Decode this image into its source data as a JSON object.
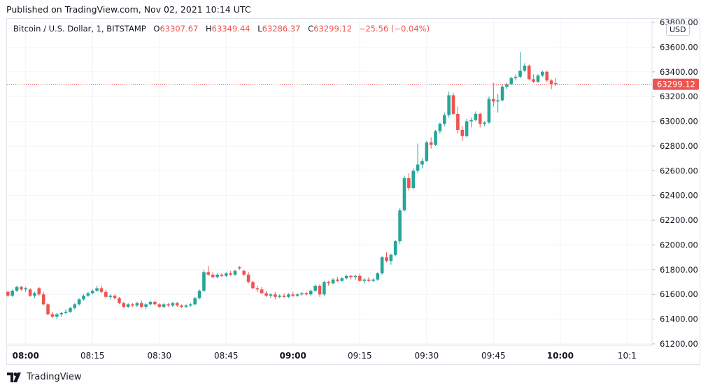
{
  "published": "Published on TradingView.com, Nov 02, 2021 10:14 UTC",
  "legend": {
    "symbol": "Bitcoin / U.S. Dollar, 1, BITSTAMP",
    "o_label": "O",
    "o_value": "63307.67",
    "h_label": "H",
    "h_value": "63349.44",
    "l_label": "L",
    "l_value": "63286.37",
    "c_label": "C",
    "c_value": "63299.12",
    "change": "−25.56 (−0.04%)"
  },
  "currency": "USD",
  "footer": {
    "brand": "TradingView"
  },
  "colors": {
    "up": "#26a69a",
    "down": "#ef5350",
    "grid": "#f0f3fa",
    "text": "#131722"
  },
  "chart_data": {
    "type": "candlestick",
    "title": "Bitcoin / U.S. Dollar, 1, BITSTAMP",
    "ylim": [
      61200,
      63800
    ],
    "y_ticks": [
      61200,
      61400,
      61600,
      61800,
      62000,
      62200,
      62400,
      62600,
      62800,
      63000,
      63200,
      63400,
      63600,
      63800
    ],
    "y_tick_labels": [
      "61200.00",
      "61400.00",
      "61600.00",
      "61800.00",
      "62000.00",
      "62200.00",
      "62400.00",
      "62600.00",
      "62800.00",
      "63000.00",
      "63200.00",
      "63400.00",
      "63600.00",
      "63800.00"
    ],
    "x_minutes_range": [
      -4.2,
      140.6
    ],
    "x_ticks": [
      {
        "minute": 0,
        "label": "08:00",
        "bold": true
      },
      {
        "minute": 15,
        "label": "08:15",
        "bold": false
      },
      {
        "minute": 30,
        "label": "08:30",
        "bold": false
      },
      {
        "minute": 45,
        "label": "08:45",
        "bold": false
      },
      {
        "minute": 60,
        "label": "09:00",
        "bold": true
      },
      {
        "minute": 75,
        "label": "09:15",
        "bold": false
      },
      {
        "minute": 90,
        "label": "09:30",
        "bold": false
      },
      {
        "minute": 105,
        "label": "09:45",
        "bold": false
      },
      {
        "minute": 120,
        "label": "10:00",
        "bold": true
      },
      {
        "minute": 135,
        "label": "10:1",
        "bold": false
      }
    ],
    "last_price": 63299.12,
    "last_price_label": "63299.12",
    "start_minute": -10,
    "ohlc": [
      [
        61710,
        61720,
        61640,
        61650
      ],
      [
        61650,
        61670,
        61630,
        61660
      ],
      [
        61660,
        61670,
        61640,
        61650
      ],
      [
        61650,
        61670,
        61640,
        61660
      ],
      [
        61660,
        61670,
        61640,
        61650
      ],
      [
        61660,
        61670,
        61600,
        61620
      ],
      [
        61620,
        61630,
        61580,
        61590
      ],
      [
        61590,
        61640,
        61580,
        61630
      ],
      [
        61630,
        61670,
        61620,
        61660
      ],
      [
        61660,
        61670,
        61630,
        61640
      ],
      [
        61640,
        61660,
        61620,
        61650
      ],
      [
        61640,
        61650,
        61580,
        61590
      ],
      [
        61590,
        61620,
        61570,
        61610
      ],
      [
        61650,
        61660,
        61590,
        61600
      ],
      [
        61600,
        61620,
        61510,
        61520
      ],
      [
        61520,
        61530,
        61430,
        61440
      ],
      [
        61440,
        61460,
        61410,
        61420
      ],
      [
        61420,
        61450,
        61400,
        61440
      ],
      [
        61440,
        61460,
        61420,
        61450
      ],
      [
        61450,
        61480,
        61440,
        61460
      ],
      [
        61460,
        61500,
        61450,
        61490
      ],
      [
        61490,
        61530,
        61480,
        61520
      ],
      [
        61520,
        61570,
        61510,
        61560
      ],
      [
        61560,
        61600,
        61550,
        61590
      ],
      [
        61590,
        61620,
        61580,
        61610
      ],
      [
        61610,
        61640,
        61600,
        61630
      ],
      [
        61630,
        61670,
        61620,
        61650
      ],
      [
        61650,
        61670,
        61610,
        61620
      ],
      [
        61620,
        61640,
        61570,
        61580
      ],
      [
        61580,
        61600,
        61560,
        61590
      ],
      [
        61590,
        61600,
        61560,
        61570
      ],
      [
        61570,
        61580,
        61520,
        61530
      ],
      [
        61530,
        61540,
        61490,
        61500
      ],
      [
        61500,
        61530,
        61490,
        61520
      ],
      [
        61520,
        61530,
        61500,
        61510
      ],
      [
        61510,
        61540,
        61500,
        61530
      ],
      [
        61530,
        61550,
        61490,
        61500
      ],
      [
        61500,
        61530,
        61480,
        61520
      ],
      [
        61520,
        61550,
        61510,
        61540
      ],
      [
        61540,
        61550,
        61510,
        61520
      ],
      [
        61520,
        61530,
        61490,
        61500
      ],
      [
        61500,
        61530,
        61490,
        61520
      ],
      [
        61520,
        61530,
        61500,
        61510
      ],
      [
        61510,
        61540,
        61500,
        61530
      ],
      [
        61530,
        61540,
        61500,
        61510
      ],
      [
        61510,
        61520,
        61490,
        61500
      ],
      [
        61500,
        61520,
        61490,
        61510
      ],
      [
        61510,
        61530,
        61500,
        61520
      ],
      [
        61520,
        61580,
        61510,
        61570
      ],
      [
        61570,
        61640,
        61560,
        61630
      ],
      [
        61630,
        61800,
        61620,
        61780
      ],
      [
        61780,
        61830,
        61750,
        61760
      ],
      [
        61760,
        61780,
        61730,
        61740
      ],
      [
        61740,
        61770,
        61730,
        61760
      ],
      [
        61760,
        61770,
        61740,
        61750
      ],
      [
        61750,
        61780,
        61740,
        61770
      ],
      [
        61770,
        61790,
        61750,
        61760
      ],
      [
        61760,
        61800,
        61750,
        61790
      ],
      [
        61820,
        61830,
        61800,
        61810
      ],
      [
        61790,
        61800,
        61750,
        61760
      ],
      [
        61760,
        61780,
        61690,
        61700
      ],
      [
        61700,
        61710,
        61640,
        61650
      ],
      [
        61650,
        61670,
        61620,
        61640
      ],
      [
        61640,
        61660,
        61600,
        61610
      ],
      [
        61610,
        61630,
        61580,
        61590
      ],
      [
        61590,
        61610,
        61570,
        61600
      ],
      [
        61600,
        61620,
        61560,
        61580
      ],
      [
        61580,
        61600,
        61570,
        61590
      ],
      [
        61590,
        61610,
        61570,
        61580
      ],
      [
        61580,
        61610,
        61570,
        61600
      ],
      [
        61600,
        61620,
        61580,
        61590
      ],
      [
        61590,
        61610,
        61580,
        61600
      ],
      [
        61600,
        61620,
        61590,
        61610
      ],
      [
        61610,
        61620,
        61590,
        61600
      ],
      [
        61600,
        61640,
        61590,
        61630
      ],
      [
        61630,
        61680,
        61620,
        61670
      ],
      [
        61670,
        61680,
        61580,
        61600
      ],
      [
        61600,
        61710,
        61590,
        61700
      ],
      [
        61700,
        61710,
        61670,
        61690
      ],
      [
        61690,
        61730,
        61680,
        61720
      ],
      [
        61720,
        61740,
        61700,
        61710
      ],
      [
        61710,
        61740,
        61700,
        61730
      ],
      [
        61730,
        61760,
        61720,
        61750
      ],
      [
        61750,
        61760,
        61720,
        61740
      ],
      [
        61740,
        61760,
        61720,
        61750
      ],
      [
        61750,
        61770,
        61700,
        61710
      ],
      [
        61710,
        61730,
        61690,
        61720
      ],
      [
        61720,
        61740,
        61700,
        61710
      ],
      [
        61710,
        61730,
        61700,
        61720
      ],
      [
        61720,
        61780,
        61710,
        61770
      ],
      [
        61770,
        61910,
        61760,
        61900
      ],
      [
        61900,
        61940,
        61860,
        61870
      ],
      [
        61870,
        61930,
        61840,
        61920
      ],
      [
        61920,
        62040,
        61910,
        62030
      ],
      [
        62030,
        62300,
        62010,
        62280
      ],
      [
        62280,
        62560,
        62270,
        62540
      ],
      [
        62540,
        62580,
        62440,
        62460
      ],
      [
        62460,
        62620,
        62450,
        62600
      ],
      [
        62600,
        62820,
        62580,
        62650
      ],
      [
        62650,
        62700,
        62620,
        62680
      ],
      [
        62680,
        62840,
        62670,
        62830
      ],
      [
        62830,
        62870,
        62780,
        62810
      ],
      [
        62810,
        62930,
        62800,
        62920
      ],
      [
        62920,
        62990,
        62900,
        62980
      ],
      [
        62980,
        63070,
        62960,
        63050
      ],
      [
        63050,
        63240,
        63030,
        63210
      ],
      [
        63210,
        63230,
        63050,
        63060
      ],
      [
        63060,
        63120,
        62900,
        62930
      ],
      [
        62930,
        62960,
        62840,
        62880
      ],
      [
        62880,
        63020,
        62870,
        63000
      ],
      [
        63000,
        63030,
        62950,
        63010
      ],
      [
        63010,
        63080,
        63000,
        63060
      ],
      [
        63060,
        63070,
        62950,
        62980
      ],
      [
        62980,
        63000,
        62960,
        62990
      ],
      [
        62990,
        63200,
        62980,
        63180
      ],
      [
        63180,
        63310,
        63120,
        63160
      ],
      [
        63160,
        63220,
        63070,
        63170
      ],
      [
        63170,
        63300,
        63160,
        63280
      ],
      [
        63280,
        63310,
        63260,
        63300
      ],
      [
        63300,
        63360,
        63290,
        63350
      ],
      [
        63350,
        63380,
        63330,
        63360
      ],
      [
        63360,
        63560,
        63350,
        63410
      ],
      [
        63410,
        63470,
        63400,
        63450
      ],
      [
        63450,
        63460,
        63330,
        63340
      ],
      [
        63340,
        63380,
        63310,
        63320
      ],
      [
        63320,
        63380,
        63310,
        63370
      ],
      [
        63370,
        63410,
        63360,
        63400
      ],
      [
        63400,
        63410,
        63320,
        63330
      ],
      [
        63330,
        63340,
        63260,
        63300
      ],
      [
        63307.67,
        63349.44,
        63286.37,
        63299.12
      ]
    ]
  }
}
